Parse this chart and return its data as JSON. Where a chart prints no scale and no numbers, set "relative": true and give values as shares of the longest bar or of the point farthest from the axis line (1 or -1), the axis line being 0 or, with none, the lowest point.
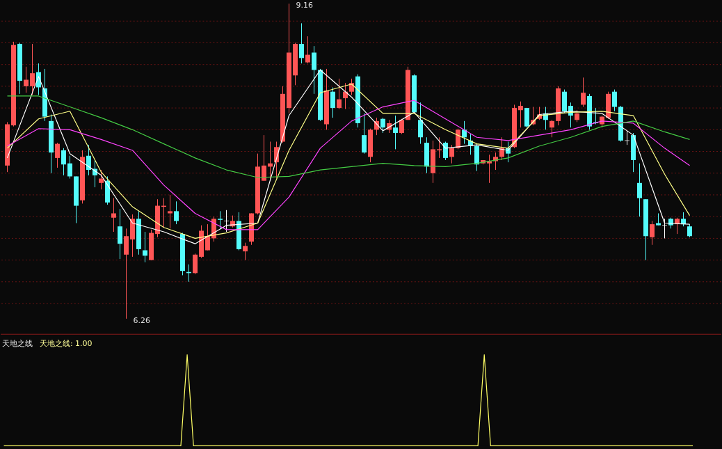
{
  "chart_data": [
    {
      "type": "candlestick",
      "categories": [
        null,
        null,
        null,
        null,
        null,
        null,
        null,
        null,
        null,
        null,
        null,
        null,
        null,
        null,
        null,
        null,
        null,
        null,
        null,
        null,
        null,
        null,
        null,
        null,
        null,
        null,
        null,
        null,
        null,
        null,
        null,
        null,
        null,
        null,
        null,
        null,
        null,
        null,
        null,
        null,
        null,
        null,
        null,
        null,
        null,
        null,
        null,
        null,
        null,
        null,
        null,
        null,
        null,
        null,
        null,
        null,
        null,
        null,
        null,
        null,
        null,
        null,
        null,
        null,
        null,
        null,
        null,
        null,
        null,
        null,
        null,
        null,
        null,
        null,
        null,
        null,
        null,
        null,
        null,
        null,
        null,
        null,
        null,
        null,
        null,
        null,
        null,
        null,
        null,
        null,
        null,
        null,
        null,
        null,
        null,
        null,
        null,
        null,
        null,
        null,
        null,
        null,
        null,
        null,
        null,
        null,
        null,
        null,
        null,
        null
      ],
      "ohlc": [
        [
          7.67,
          8.07,
          7.61,
          8.05
        ],
        [
          8.04,
          8.81,
          8.03,
          8.78
        ],
        [
          8.79,
          8.8,
          8.33,
          8.45
        ],
        [
          8.4,
          8.58,
          8.34,
          8.46
        ],
        [
          8.4,
          8.79,
          8.32,
          8.52
        ],
        [
          8.53,
          8.61,
          8.32,
          8.39
        ],
        [
          8.38,
          8.56,
          8.08,
          8.12
        ],
        [
          8.08,
          8.14,
          7.6,
          7.79
        ],
        [
          7.74,
          7.88,
          7.65,
          7.87
        ],
        [
          7.81,
          7.83,
          7.58,
          7.68
        ],
        [
          7.69,
          7.76,
          7.55,
          7.57
        ],
        [
          7.57,
          7.57,
          7.14,
          7.3
        ],
        [
          7.35,
          7.81,
          7.32,
          7.75
        ],
        [
          7.76,
          7.86,
          7.58,
          7.63
        ],
        [
          7.64,
          7.72,
          7.47,
          7.58
        ],
        [
          7.51,
          7.63,
          7.45,
          7.55
        ],
        [
          7.53,
          7.57,
          7.31,
          7.33
        ],
        [
          7.19,
          7.37,
          7.06,
          7.23
        ],
        [
          7.11,
          7.27,
          6.81,
          6.95
        ],
        [
          6.85,
          7.09,
          6.26,
          7.02
        ],
        [
          6.99,
          7.22,
          6.83,
          7.18
        ],
        [
          7.18,
          7.25,
          6.85,
          6.9
        ],
        [
          6.89,
          7.06,
          6.78,
          6.84
        ],
        [
          6.8,
          7.08,
          6.8,
          7.05
        ],
        [
          7.04,
          7.36,
          7.01,
          7.3
        ],
        [
          7.29,
          7.37,
          7.1,
          7.3
        ],
        [
          7.23,
          7.4,
          7.09,
          7.25
        ],
        [
          7.25,
          7.34,
          7.13,
          7.16
        ],
        [
          7.04,
          7.05,
          6.66,
          6.7
        ],
        [
          6.69,
          6.76,
          6.6,
          6.68
        ],
        [
          6.68,
          6.86,
          6.67,
          6.85
        ],
        [
          6.83,
          7.12,
          6.82,
          7.07
        ],
        [
          6.89,
          7.13,
          6.89,
          7.02
        ],
        [
          7.0,
          7.2,
          6.97,
          7.18
        ],
        [
          7.18,
          7.25,
          7.09,
          7.17
        ],
        [
          7.16,
          7.26,
          7.06,
          7.16
        ],
        [
          7.11,
          7.21,
          7.1,
          7.16
        ],
        [
          7.16,
          7.24,
          6.89,
          6.9
        ],
        [
          6.88,
          6.96,
          6.8,
          6.93
        ],
        [
          6.97,
          7.23,
          6.94,
          7.23
        ],
        [
          7.23,
          7.78,
          7.22,
          7.66
        ],
        [
          7.53,
          7.95,
          7.53,
          7.67
        ],
        [
          7.66,
          7.89,
          7.55,
          7.69
        ],
        [
          7.7,
          7.89,
          7.55,
          7.84
        ],
        [
          7.89,
          8.4,
          7.88,
          8.33
        ],
        [
          8.2,
          9.16,
          8.15,
          8.71
        ],
        [
          8.5,
          8.8,
          8.41,
          8.79
        ],
        [
          8.79,
          8.98,
          8.61,
          8.66
        ],
        [
          8.62,
          8.86,
          8.61,
          8.69
        ],
        [
          8.71,
          8.77,
          8.33,
          8.55
        ],
        [
          8.55,
          8.56,
          8.08,
          8.09
        ],
        [
          8.05,
          8.56,
          8.0,
          8.36
        ],
        [
          8.35,
          8.39,
          8.11,
          8.2
        ],
        [
          8.2,
          8.47,
          8.19,
          8.28
        ],
        [
          8.29,
          8.43,
          8.19,
          8.35
        ],
        [
          8.35,
          8.47,
          8.32,
          8.43
        ],
        [
          8.49,
          8.51,
          8.02,
          8.06
        ],
        [
          7.95,
          8.15,
          7.78,
          7.79
        ],
        [
          7.75,
          8.01,
          7.7,
          8.0
        ],
        [
          8.0,
          8.11,
          7.95,
          8.08
        ],
        [
          8.1,
          8.11,
          7.97,
          8.02
        ],
        [
          8.0,
          8.09,
          7.97,
          8.06
        ],
        [
          8.02,
          8.13,
          7.82,
          7.97
        ],
        [
          7.97,
          8.1,
          7.96,
          8.09
        ],
        [
          8.09,
          8.58,
          8.09,
          8.55
        ],
        [
          8.5,
          8.51,
          8.15,
          8.16
        ],
        [
          8.09,
          8.25,
          7.87,
          7.93
        ],
        [
          7.88,
          7.93,
          7.6,
          7.66
        ],
        [
          7.6,
          7.9,
          7.51,
          7.82
        ],
        [
          7.81,
          7.93,
          7.74,
          7.82
        ],
        [
          7.88,
          7.89,
          7.72,
          7.74
        ],
        [
          7.75,
          7.86,
          7.69,
          7.83
        ],
        [
          7.83,
          8.01,
          7.82,
          8.0
        ],
        [
          8.0,
          8.08,
          7.87,
          7.93
        ],
        [
          7.9,
          7.96,
          7.77,
          7.85
        ],
        [
          7.85,
          7.87,
          7.62,
          7.68
        ],
        [
          7.69,
          7.72,
          7.68,
          7.72
        ],
        [
          7.69,
          7.77,
          7.51,
          7.71
        ],
        [
          7.71,
          7.79,
          7.63,
          7.75
        ],
        [
          7.75,
          7.93,
          7.72,
          7.83
        ],
        [
          7.83,
          7.89,
          7.7,
          7.78
        ],
        [
          7.84,
          8.23,
          7.83,
          8.2
        ],
        [
          8.18,
          8.26,
          8.02,
          8.22
        ],
        [
          8.2,
          8.2,
          8.02,
          8.03
        ],
        [
          8.05,
          8.21,
          8.04,
          8.09
        ],
        [
          8.1,
          8.21,
          8.09,
          8.14
        ],
        [
          8.15,
          8.21,
          8.0,
          8.09
        ],
        [
          8.02,
          8.09,
          7.93,
          8.08
        ],
        [
          8.08,
          8.4,
          8.04,
          8.38
        ],
        [
          8.35,
          8.37,
          8.15,
          8.17
        ],
        [
          8.22,
          8.25,
          8.02,
          8.13
        ],
        [
          8.09,
          8.18,
          8.07,
          8.15
        ],
        [
          8.23,
          8.48,
          8.21,
          8.34
        ],
        [
          8.31,
          8.33,
          8.0,
          8.03
        ],
        [
          8.07,
          8.2,
          8.05,
          8.06
        ],
        [
          8.05,
          8.13,
          8.02,
          8.12
        ],
        [
          8.11,
          8.35,
          8.1,
          8.33
        ],
        [
          8.35,
          8.37,
          8.17,
          8.21
        ],
        [
          8.21,
          8.22,
          7.89,
          7.9
        ],
        [
          7.9,
          7.99,
          7.86,
          7.9
        ],
        [
          7.95,
          7.97,
          7.61,
          7.72
        ],
        [
          7.51,
          7.69,
          7.2,
          7.37
        ],
        [
          7.36,
          7.36,
          6.8,
          7.02
        ],
        [
          7.01,
          7.16,
          6.94,
          7.13
        ],
        [
          7.14,
          7.23,
          7.12,
          7.12
        ],
        [
          7.12,
          7.18,
          7.0,
          7.12
        ],
        [
          7.18,
          7.19,
          7.09,
          7.12
        ],
        [
          7.13,
          7.19,
          7.04,
          7.18
        ],
        [
          7.18,
          7.24,
          7.11,
          7.13
        ],
        [
          7.11,
          7.13,
          7.01,
          7.02
        ]
      ],
      "colors": [
        "#ff5555",
        "#ff5555",
        "#54fcfc",
        "#ff5555",
        "#ff5555",
        "#54fcfc",
        "#54fcfc",
        "#54fcfc",
        "#ff5555",
        "#54fcfc",
        "#54fcfc",
        "#54fcfc",
        "#ff5555",
        "#54fcfc",
        "#54fcfc",
        "#ff5555",
        "#54fcfc",
        "#ff5555",
        "#54fcfc",
        "#ff5555",
        "#ff5555",
        "#54fcfc",
        "#54fcfc",
        "#ff5555",
        "#ff5555",
        "#ff5555",
        "#ff5555",
        "#54fcfc",
        "#54fcfc",
        "#54fcfc",
        "#ff5555",
        "#ff5555",
        "#ff5555",
        "#ff5555",
        "#54fcfc",
        "#ffffff",
        "#ff5555",
        "#54fcfc",
        "#ff5555",
        "#ff5555",
        "#ff5555",
        "#ff5555",
        "#ff5555",
        "#ff5555",
        "#ff5555",
        "#ff5555",
        "#ff5555",
        "#54fcfc",
        "#ff5555",
        "#54fcfc",
        "#54fcfc",
        "#ff5555",
        "#54fcfc",
        "#ff5555",
        "#ff5555",
        "#ff5555",
        "#54fcfc",
        "#54fcfc",
        "#ff5555",
        "#ff5555",
        "#54fcfc",
        "#ff5555",
        "#54fcfc",
        "#ff5555",
        "#ff5555",
        "#54fcfc",
        "#54fcfc",
        "#54fcfc",
        "#ff5555",
        "#ff5555",
        "#54fcfc",
        "#ff5555",
        "#ff5555",
        "#54fcfc",
        "#54fcfc",
        "#54fcfc",
        "#ff5555",
        "#ff5555",
        "#ff5555",
        "#ff5555",
        "#54fcfc",
        "#ff5555",
        "#ff5555",
        "#54fcfc",
        "#ff5555",
        "#ff5555",
        "#54fcfc",
        "#ff5555",
        "#ff5555",
        "#54fcfc",
        "#54fcfc",
        "#ff5555",
        "#ff5555",
        "#54fcfc",
        "#54fcfc",
        "#ff5555",
        "#ff5555",
        "#54fcfc",
        "#54fcfc",
        "#ffffff",
        "#54fcfc",
        "#54fcfc",
        "#54fcfc",
        "#ff5555",
        "#54fcfc",
        "#ffffff",
        "#54fcfc",
        "#ff5555",
        "#54fcfc",
        "#54fcfc"
      ],
      "series": [
        {
          "type": "line",
          "color": "#ffffff",
          "values": [
            7.74,
            null,
            null,
            null,
            null,
            8.49,
            null,
            null,
            null,
            null,
            7.78,
            null,
            null,
            null,
            null,
            7.58,
            null,
            null,
            null,
            null,
            7.14,
            null,
            null,
            null,
            null,
            7.06,
            null,
            null,
            null,
            null,
            6.95,
            null,
            null,
            null,
            null,
            7.12,
            null,
            null,
            null,
            null,
            7.14,
            null,
            null,
            null,
            null,
            8.13,
            null,
            null,
            null,
            null,
            8.55,
            null,
            null,
            null,
            null,
            8.3,
            null,
            null,
            null,
            null,
            7.99,
            null,
            null,
            null,
            null,
            8.16,
            null,
            null,
            null,
            null,
            7.83,
            null,
            null,
            null,
            null,
            7.86,
            null,
            null,
            null,
            null,
            7.81,
            null,
            null,
            null,
            null,
            8.14,
            null,
            null,
            null,
            null,
            8.17,
            null,
            null,
            null,
            null,
            8.15,
            null,
            null,
            null,
            null,
            7.95,
            null,
            null,
            null,
            null,
            7.14,
            null,
            null,
            null,
            7.13
          ]
        },
        {
          "type": "line",
          "color": "#ffff88",
          "values": [
            7.83,
            null,
            null,
            null,
            null,
            8.1,
            null,
            null,
            null,
            null,
            8.17,
            null,
            null,
            null,
            null,
            7.61,
            null,
            null,
            null,
            null,
            7.29,
            null,
            null,
            null,
            null,
            7.1,
            null,
            null,
            null,
            null,
            7.0,
            null,
            null,
            null,
            null,
            7.05,
            null,
            null,
            null,
            null,
            7.14,
            null,
            null,
            null,
            null,
            7.81,
            null,
            null,
            null,
            null,
            8.34,
            null,
            null,
            null,
            null,
            8.42,
            null,
            null,
            null,
            null,
            8.15,
            null,
            null,
            null,
            null,
            8.15,
            null,
            null,
            null,
            null,
            8.0,
            null,
            null,
            null,
            null,
            7.87,
            null,
            null,
            null,
            null,
            7.83,
            null,
            null,
            null,
            null,
            8.13,
            null,
            null,
            null,
            null,
            8.16,
            null,
            null,
            null,
            null,
            8.17,
            null,
            null,
            null,
            null,
            8.13,
            null,
            null,
            null,
            null,
            7.59,
            null,
            null,
            null,
            7.21
          ]
        },
        {
          "type": "line",
          "color": "#ff44ff",
          "values": [
            7.85,
            null,
            null,
            null,
            null,
            8.01,
            null,
            null,
            null,
            null,
            8.0,
            null,
            null,
            null,
            null,
            7.91,
            null,
            null,
            null,
            null,
            7.81,
            null,
            null,
            null,
            null,
            7.49,
            null,
            null,
            null,
            null,
            7.23,
            null,
            null,
            null,
            null,
            7.08,
            null,
            null,
            null,
            null,
            7.08,
            null,
            null,
            null,
            null,
            7.38,
            null,
            null,
            null,
            null,
            7.83,
            null,
            null,
            null,
            null,
            8.08,
            null,
            null,
            null,
            null,
            8.21,
            null,
            null,
            null,
            null,
            8.27,
            null,
            null,
            null,
            null,
            8.1,
            null,
            null,
            null,
            null,
            7.93,
            null,
            null,
            null,
            null,
            7.9,
            null,
            null,
            null,
            null,
            7.95,
            null,
            null,
            null,
            null,
            8.0,
            null,
            null,
            null,
            null,
            8.08,
            null,
            null,
            null,
            null,
            8.06,
            null,
            null,
            null,
            null,
            7.83,
            null,
            null,
            null,
            7.67
          ]
        },
        {
          "type": "line",
          "color": "#44cc44",
          "values": [
            8.31,
            null,
            null,
            null,
            null,
            8.31,
            null,
            null,
            null,
            null,
            8.21,
            null,
            null,
            null,
            null,
            8.11,
            null,
            null,
            null,
            null,
            8.0,
            null,
            null,
            null,
            null,
            7.87,
            null,
            null,
            null,
            null,
            7.74,
            null,
            null,
            null,
            null,
            7.63,
            null,
            null,
            null,
            null,
            7.56,
            null,
            null,
            null,
            null,
            7.57,
            null,
            null,
            null,
            null,
            7.63,
            null,
            null,
            null,
            null,
            7.66,
            null,
            null,
            null,
            null,
            7.69,
            null,
            null,
            null,
            null,
            7.67,
            null,
            null,
            null,
            null,
            7.66,
            null,
            null,
            null,
            null,
            7.69,
            null,
            null,
            null,
            null,
            7.74,
            null,
            null,
            null,
            null,
            7.85,
            null,
            null,
            null,
            null,
            7.93,
            null,
            null,
            null,
            null,
            8.03,
            null,
            null,
            null,
            null,
            8.08,
            null,
            null,
            null,
            null,
            7.98,
            null,
            null,
            null,
            7.91
          ]
        }
      ],
      "ylim": [
        6.12,
        9.19
      ],
      "yticks": [
        {
          "value": 6.4,
          "label": null
        },
        {
          "value": 6.6,
          "label": null
        },
        {
          "value": 6.8,
          "label": null
        },
        {
          "value": 7.0,
          "label": null
        },
        {
          "value": 7.2,
          "label": null
        },
        {
          "value": 7.4,
          "label": null
        },
        {
          "value": 7.6,
          "label": null
        },
        {
          "value": 7.8,
          "label": null
        },
        {
          "value": 8.0,
          "label": null
        },
        {
          "value": 8.2,
          "label": null
        },
        {
          "value": 8.4,
          "label": null
        },
        {
          "value": 8.6,
          "label": null
        },
        {
          "value": 8.8,
          "label": null
        },
        {
          "value": 9.0,
          "label": null
        }
      ],
      "grid": "y",
      "marker": "none",
      "annotations": [
        "9.16",
        "6.26"
      ]
    },
    {
      "type": "line",
      "title": "天地之线",
      "categories": [
        null,
        null,
        null,
        null,
        null,
        null,
        null,
        null,
        null,
        null,
        null,
        null,
        null,
        null,
        null,
        null,
        null,
        null,
        null,
        null,
        null,
        null,
        null,
        null,
        null,
        null,
        null,
        null,
        null,
        null,
        null,
        null,
        null,
        null,
        null,
        null,
        null,
        null,
        null,
        null,
        null,
        null,
        null,
        null,
        null,
        null,
        null,
        null,
        null,
        null,
        null,
        null,
        null,
        null,
        null,
        null,
        null,
        null,
        null,
        null,
        null,
        null,
        null,
        null,
        null,
        null,
        null,
        null,
        null,
        null,
        null,
        null,
        null,
        null,
        null,
        null,
        null,
        null,
        null,
        null,
        null,
        null,
        null,
        null,
        null,
        null,
        null,
        null,
        null,
        null,
        null,
        null,
        null,
        null,
        null,
        null,
        null,
        null,
        null,
        null,
        null,
        null,
        null,
        null,
        null,
        null,
        null,
        null,
        null,
        null
      ],
      "series": [
        {
          "color": "#ffff66",
          "values": [
            0,
            0,
            0,
            0,
            0,
            0,
            0,
            0,
            0,
            0,
            0,
            0,
            0,
            0,
            0,
            0,
            0,
            0,
            0,
            0,
            0,
            0,
            0,
            0,
            0,
            0,
            0,
            0,
            0,
            1,
            0,
            0,
            0,
            0,
            0,
            0,
            0,
            0,
            0,
            0,
            0,
            0,
            0,
            0,
            0,
            0,
            0,
            0,
            0,
            0,
            0,
            0,
            0,
            0,
            0,
            0,
            0,
            0,
            0,
            0,
            0,
            0,
            0,
            0,
            0,
            0,
            0,
            0,
            0,
            0,
            0,
            0,
            0,
            0,
            0,
            0,
            1,
            0,
            0,
            0,
            0,
            0,
            0,
            0,
            0,
            0,
            0,
            0,
            0,
            0,
            0,
            0,
            0,
            0,
            0,
            0,
            0,
            0,
            0,
            0,
            0,
            0,
            0,
            0,
            0,
            0,
            0,
            0,
            0,
            0
          ]
        }
      ],
      "relative": true,
      "marker": "none",
      "annotations": [
        "天地之线: 1.00"
      ]
    }
  ]
}
